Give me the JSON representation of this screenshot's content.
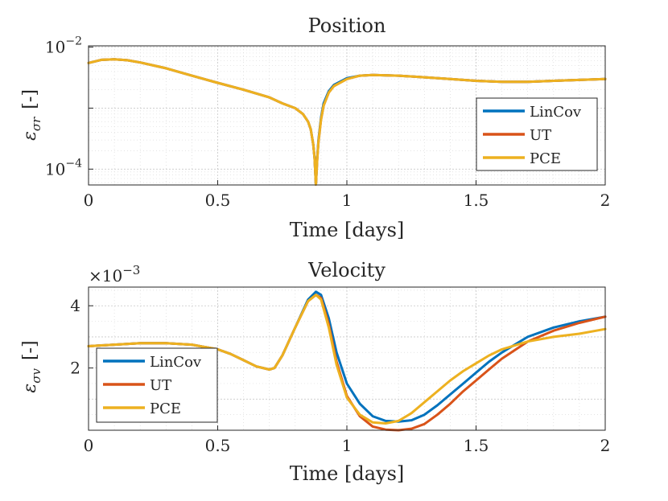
{
  "chart_data": [
    {
      "id": "position",
      "type": "line",
      "title": "Position",
      "xlabel": "Time [days]",
      "ylabel_symbol": "ε",
      "ylabel_sub": "σr",
      "ylabel_unit": "[-]",
      "yscale": "log",
      "xlim": [
        0,
        2
      ],
      "ylim": [
        5.5e-05,
        0.0105
      ],
      "xticks": [
        0,
        0.5,
        1,
        1.5,
        2
      ],
      "xtick_labels": [
        "0",
        "0.5",
        "1",
        "1.5",
        "2"
      ],
      "ytick_labels": [
        {
          "base": "10",
          "exp": "−4",
          "value": 0.0001
        },
        {
          "base": "10",
          "exp": "−2",
          "value": 0.01
        }
      ],
      "grid": true,
      "legend_position": "bottom-right",
      "series": [
        {
          "name": "LinCov",
          "color": "#0072BD",
          "x": [
            0,
            0.05,
            0.1,
            0.15,
            0.2,
            0.3,
            0.4,
            0.5,
            0.6,
            0.7,
            0.75,
            0.8,
            0.83,
            0.85,
            0.86,
            0.87,
            0.875,
            0.88,
            0.885,
            0.89,
            0.9,
            0.91,
            0.93,
            0.95,
            1.0,
            1.05,
            1.1,
            1.2,
            1.3,
            1.4,
            1.5,
            1.6,
            1.7,
            1.8,
            1.9,
            2.0
          ],
          "y": [
            0.0055,
            0.0062,
            0.0063,
            0.0061,
            0.0056,
            0.0045,
            0.0034,
            0.0026,
            0.002,
            0.0015,
            0.0012,
            0.001,
            0.0008,
            0.0006,
            0.00045,
            0.00025,
            0.00015,
            5.6e-05,
            0.00015,
            0.0003,
            0.0007,
            0.0012,
            0.0019,
            0.0024,
            0.0031,
            0.0034,
            0.0035,
            0.0034,
            0.0032,
            0.003,
            0.0028,
            0.0027,
            0.0027,
            0.0028,
            0.0029,
            0.003
          ]
        },
        {
          "name": "UT",
          "color": "#D95319",
          "x": [
            0,
            0.05,
            0.1,
            0.15,
            0.2,
            0.3,
            0.4,
            0.5,
            0.6,
            0.7,
            0.75,
            0.8,
            0.83,
            0.85,
            0.86,
            0.87,
            0.875,
            0.88,
            0.885,
            0.89,
            0.9,
            0.91,
            0.93,
            0.95,
            1.0,
            1.05,
            1.1,
            1.2,
            1.3,
            1.4,
            1.5,
            1.6,
            1.7,
            1.8,
            1.9,
            2.0
          ],
          "y": [
            0.0055,
            0.0062,
            0.0063,
            0.0061,
            0.0056,
            0.0045,
            0.0034,
            0.0026,
            0.002,
            0.0015,
            0.0012,
            0.001,
            0.0008,
            0.0006,
            0.00045,
            0.00025,
            0.00015,
            5.6e-05,
            0.00014,
            0.00028,
            0.00065,
            0.0011,
            0.0018,
            0.0023,
            0.003,
            0.0034,
            0.0035,
            0.0034,
            0.0032,
            0.003,
            0.0028,
            0.0027,
            0.0027,
            0.0028,
            0.0029,
            0.003
          ]
        },
        {
          "name": "PCE",
          "color": "#EDB120",
          "x": [
            0,
            0.05,
            0.1,
            0.15,
            0.2,
            0.3,
            0.4,
            0.5,
            0.6,
            0.7,
            0.75,
            0.8,
            0.83,
            0.85,
            0.86,
            0.87,
            0.875,
            0.88,
            0.885,
            0.89,
            0.9,
            0.91,
            0.93,
            0.95,
            1.0,
            1.05,
            1.1,
            1.2,
            1.3,
            1.4,
            1.5,
            1.6,
            1.7,
            1.8,
            1.9,
            2.0
          ],
          "y": [
            0.0055,
            0.0062,
            0.0063,
            0.0061,
            0.0056,
            0.0045,
            0.0034,
            0.0026,
            0.002,
            0.0015,
            0.0012,
            0.001,
            0.0008,
            0.0006,
            0.00045,
            0.00025,
            0.00015,
            5.6e-05,
            0.00014,
            0.00028,
            0.00065,
            0.0011,
            0.0018,
            0.0023,
            0.003,
            0.0034,
            0.0035,
            0.0034,
            0.0032,
            0.003,
            0.0028,
            0.0027,
            0.0027,
            0.0028,
            0.0029,
            0.003
          ]
        }
      ]
    },
    {
      "id": "velocity",
      "type": "line",
      "title": "Velocity",
      "xlabel": "Time [days]",
      "ylabel_symbol": "ε",
      "ylabel_sub": "σv",
      "ylabel_unit": "[-]",
      "yscale": "linear",
      "y_multiplier": {
        "prefix": "×10",
        "exp": "−3"
      },
      "xlim": [
        0,
        2
      ],
      "ylim": [
        0,
        4.6
      ],
      "xticks": [
        0,
        0.5,
        1,
        1.5,
        2
      ],
      "xtick_labels": [
        "0",
        "0.5",
        "1",
        "1.5",
        "2"
      ],
      "yticks": [
        2,
        4
      ],
      "ytick_labels": [
        "2",
        "4"
      ],
      "grid": true,
      "legend_position": "bottom-left",
      "series": [
        {
          "name": "LinCov",
          "color": "#0072BD",
          "x": [
            0,
            0.1,
            0.2,
            0.3,
            0.4,
            0.5,
            0.55,
            0.6,
            0.65,
            0.7,
            0.72,
            0.75,
            0.8,
            0.85,
            0.88,
            0.9,
            0.93,
            0.96,
            1.0,
            1.05,
            1.1,
            1.15,
            1.2,
            1.25,
            1.3,
            1.35,
            1.4,
            1.45,
            1.5,
            1.55,
            1.6,
            1.7,
            1.8,
            1.9,
            2.0
          ],
          "y": [
            2.7,
            2.75,
            2.8,
            2.8,
            2.75,
            2.6,
            2.45,
            2.25,
            2.05,
            1.95,
            2.0,
            2.4,
            3.3,
            4.2,
            4.45,
            4.35,
            3.6,
            2.5,
            1.5,
            0.85,
            0.45,
            0.3,
            0.28,
            0.32,
            0.5,
            0.8,
            1.15,
            1.5,
            1.85,
            2.2,
            2.5,
            3.0,
            3.3,
            3.5,
            3.65
          ]
        },
        {
          "name": "UT",
          "color": "#D95319",
          "x": [
            0,
            0.1,
            0.2,
            0.3,
            0.4,
            0.5,
            0.55,
            0.6,
            0.65,
            0.7,
            0.72,
            0.75,
            0.8,
            0.85,
            0.88,
            0.9,
            0.93,
            0.96,
            1.0,
            1.05,
            1.1,
            1.15,
            1.2,
            1.25,
            1.3,
            1.35,
            1.4,
            1.45,
            1.5,
            1.55,
            1.6,
            1.7,
            1.8,
            1.9,
            2.0
          ],
          "y": [
            2.7,
            2.75,
            2.8,
            2.8,
            2.75,
            2.6,
            2.45,
            2.25,
            2.05,
            1.95,
            2.0,
            2.4,
            3.3,
            4.15,
            4.35,
            4.25,
            3.4,
            2.2,
            1.1,
            0.45,
            0.12,
            0.02,
            0.0,
            0.05,
            0.2,
            0.5,
            0.85,
            1.25,
            1.6,
            1.95,
            2.3,
            2.85,
            3.2,
            3.45,
            3.65
          ]
        },
        {
          "name": "PCE",
          "color": "#EDB120",
          "x": [
            0,
            0.1,
            0.2,
            0.3,
            0.4,
            0.5,
            0.55,
            0.6,
            0.65,
            0.7,
            0.72,
            0.75,
            0.8,
            0.85,
            0.88,
            0.9,
            0.93,
            0.96,
            1.0,
            1.05,
            1.1,
            1.15,
            1.2,
            1.25,
            1.3,
            1.35,
            1.4,
            1.45,
            1.5,
            1.55,
            1.6,
            1.7,
            1.8,
            1.9,
            2.0
          ],
          "y": [
            2.7,
            2.75,
            2.8,
            2.8,
            2.75,
            2.6,
            2.45,
            2.25,
            2.05,
            1.95,
            2.0,
            2.4,
            3.3,
            4.15,
            4.35,
            4.2,
            3.3,
            2.1,
            1.05,
            0.5,
            0.25,
            0.22,
            0.3,
            0.55,
            0.9,
            1.25,
            1.6,
            1.9,
            2.15,
            2.4,
            2.6,
            2.85,
            3.0,
            3.1,
            3.25
          ]
        }
      ]
    }
  ]
}
